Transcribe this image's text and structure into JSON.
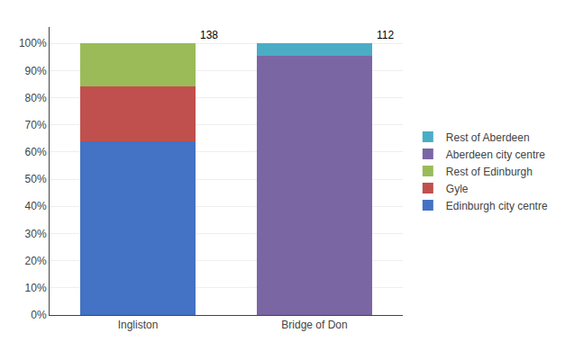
{
  "chart_data": {
    "type": "bar",
    "stacked": true,
    "categories": [
      "Ingliston",
      "Bridge of Don"
    ],
    "series": [
      {
        "name": "Edinburgh city centre",
        "color": "#4472C4",
        "values": [
          63.8,
          0.0
        ]
      },
      {
        "name": "Gyle",
        "color": "#C0504D",
        "values": [
          20.3,
          0.0
        ]
      },
      {
        "name": "Rest of Edinburgh",
        "color": "#9BBB59",
        "values": [
          15.9,
          0.0
        ]
      },
      {
        "name": "Aberdeen city centre",
        "color": "#7B66A4",
        "values": [
          0.0,
          95.5
        ]
      },
      {
        "name": "Rest of Aberdeen",
        "color": "#4BACC6",
        "values": [
          0.0,
          4.5
        ]
      }
    ],
    "totals": [
      138,
      112
    ],
    "ylim": [
      0,
      106
    ],
    "yticks": [
      {
        "value": 0,
        "label": "0%"
      },
      {
        "value": 10,
        "label": "10%"
      },
      {
        "value": 20,
        "label": "20%"
      },
      {
        "value": 30,
        "label": "30%"
      },
      {
        "value": 40,
        "label": "40%"
      },
      {
        "value": 50,
        "label": "50%"
      },
      {
        "value": 60,
        "label": "60%"
      },
      {
        "value": 70,
        "label": "70%"
      },
      {
        "value": 80,
        "label": "80%"
      },
      {
        "value": 90,
        "label": "90%"
      },
      {
        "value": 100,
        "label": "100%"
      }
    ],
    "grid": true,
    "legend": "right"
  }
}
